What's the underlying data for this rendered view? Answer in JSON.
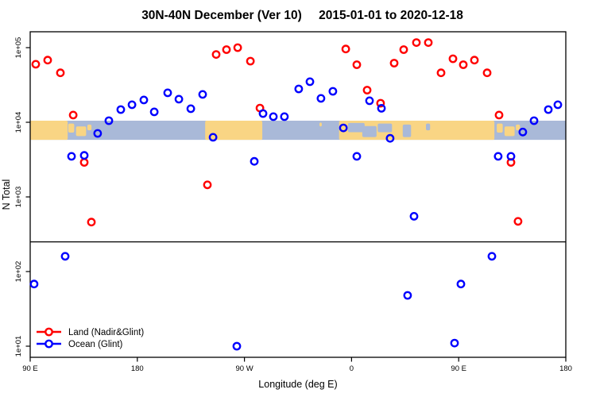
{
  "header": {
    "title_left": "30N-40N December (Ver 10)",
    "title_right": "2015-01-01 to 2020-12-18"
  },
  "chart_data": {
    "type": "scatter",
    "title": "30N-40N December (Ver 10)   2015-01-01 to 2020-12-18",
    "xlabel": "Longitude (deg E)",
    "ylabel": "N Total",
    "x_axis": {
      "range_deg_east_continuous": [
        90,
        540
      ],
      "ticks": [
        {
          "lon": 90,
          "label": "90 E"
        },
        {
          "lon": 180,
          "label": "180"
        },
        {
          "lon": 270,
          "label": "90 W"
        },
        {
          "lon": 360,
          "label": "0"
        },
        {
          "lon": 450,
          "label": "90 E"
        },
        {
          "lon": 540,
          "label": "180"
        }
      ]
    },
    "y_axis": {
      "scale": "log",
      "ticks": [
        {
          "value": 10,
          "label": "1e+01"
        },
        {
          "value": 100,
          "label": "1e+02"
        },
        {
          "value": 1000,
          "label": "1e+03"
        },
        {
          "value": 10000,
          "label": "1e+04"
        },
        {
          "value": 100000,
          "label": "1e+05"
        }
      ],
      "grid": false
    },
    "threshold_line": {
      "value": 250,
      "color": "#000000"
    },
    "map_band": {
      "description": "30N-40N world land/ocean strip drawn across the plot near 1e+04",
      "top_value": 10500,
      "bottom_value": 5800,
      "ocean_color": "#A9B9D8",
      "land_color": "#F9D584",
      "land_segments": [
        {
          "lon0": 90,
          "lon1": 121.5,
          "f0": 0,
          "f1": 1
        },
        {
          "lon0": 122,
          "lon1": 127,
          "f0": 0.15,
          "f1": 0.62
        },
        {
          "lon0": 128.5,
          "lon1": 137,
          "f0": 0.3,
          "f1": 0.8
        },
        {
          "lon0": 138,
          "lon1": 141.5,
          "f0": 0.2,
          "f1": 0.5
        },
        {
          "lon0": 237,
          "lon1": 285,
          "f0": 0,
          "f1": 1
        },
        {
          "lon0": 333,
          "lon1": 335,
          "f0": 0.1,
          "f1": 0.3
        },
        {
          "lon0": 349.5,
          "lon1": 480,
          "f0": 0,
          "f1": 1
        },
        {
          "lon0": 482,
          "lon1": 487,
          "f0": 0.15,
          "f1": 0.62
        },
        {
          "lon0": 488.5,
          "lon1": 497,
          "f0": 0.3,
          "f1": 0.8
        },
        {
          "lon0": 498,
          "lon1": 501.5,
          "f0": 0.2,
          "f1": 0.5
        }
      ],
      "water_patches": [
        {
          "lon0": 357,
          "lon1": 371,
          "f0": 0.12,
          "f1": 0.6
        },
        {
          "lon0": 369,
          "lon1": 381,
          "f0": 0.28,
          "f1": 0.85
        },
        {
          "lon0": 382,
          "lon1": 394,
          "f0": 0.15,
          "f1": 0.6
        },
        {
          "lon0": 403,
          "lon1": 410,
          "f0": 0.2,
          "f1": 0.85
        },
        {
          "lon0": 422.5,
          "lon1": 426,
          "f0": 0.15,
          "f1": 0.5
        }
      ]
    },
    "series": [
      {
        "name": "Land (Nadir&Glint)",
        "color": "#FF0000",
        "points": [
          {
            "lon": 94.7,
            "n": 60000
          },
          {
            "lon": 104.7,
            "n": 68000
          },
          {
            "lon": 115.4,
            "n": 46000
          },
          {
            "lon": 126.1,
            "n": 12500
          },
          {
            "lon": 135.4,
            "n": 2900
          },
          {
            "lon": 141.4,
            "n": 460
          },
          {
            "lon": 238.9,
            "n": 1450
          },
          {
            "lon": 246.2,
            "n": 81000
          },
          {
            "lon": 254.9,
            "n": 94000
          },
          {
            "lon": 264.3,
            "n": 100000
          },
          {
            "lon": 275.0,
            "n": 66000
          },
          {
            "lon": 283.0,
            "n": 15500
          },
          {
            "lon": 355.1,
            "n": 96000
          },
          {
            "lon": 364.4,
            "n": 59000
          },
          {
            "lon": 373.1,
            "n": 27000
          },
          {
            "lon": 384.4,
            "n": 18000
          },
          {
            "lon": 395.8,
            "n": 62000
          },
          {
            "lon": 403.8,
            "n": 94000
          },
          {
            "lon": 414.5,
            "n": 117000
          },
          {
            "lon": 424.5,
            "n": 117000
          },
          {
            "lon": 435.2,
            "n": 46000
          },
          {
            "lon": 445.2,
            "n": 71000
          },
          {
            "lon": 453.9,
            "n": 59000
          },
          {
            "lon": 463.2,
            "n": 68000
          },
          {
            "lon": 473.9,
            "n": 46000
          },
          {
            "lon": 483.9,
            "n": 12500
          },
          {
            "lon": 493.9,
            "n": 2900
          },
          {
            "lon": 499.9,
            "n": 470
          }
        ]
      },
      {
        "name": "Ocean (Glint)",
        "color": "#0000FF",
        "points": [
          {
            "lon": 93.3,
            "n": 68
          },
          {
            "lon": 119.4,
            "n": 160
          },
          {
            "lon": 124.7,
            "n": 3500
          },
          {
            "lon": 135.4,
            "n": 3600
          },
          {
            "lon": 146.7,
            "n": 7100
          },
          {
            "lon": 156.1,
            "n": 10500
          },
          {
            "lon": 166.1,
            "n": 14800
          },
          {
            "lon": 175.5,
            "n": 17200
          },
          {
            "lon": 185.5,
            "n": 19900
          },
          {
            "lon": 194.2,
            "n": 13800
          },
          {
            "lon": 205.5,
            "n": 24800
          },
          {
            "lon": 214.9,
            "n": 20400
          },
          {
            "lon": 224.9,
            "n": 15200
          },
          {
            "lon": 234.9,
            "n": 23600
          },
          {
            "lon": 243.6,
            "n": 6300
          },
          {
            "lon": 263.6,
            "n": 10
          },
          {
            "lon": 278.3,
            "n": 3000
          },
          {
            "lon": 285.6,
            "n": 13100
          },
          {
            "lon": 294.3,
            "n": 11900
          },
          {
            "lon": 303.6,
            "n": 11900
          },
          {
            "lon": 315.6,
            "n": 28000
          },
          {
            "lon": 325.0,
            "n": 35000
          },
          {
            "lon": 334.3,
            "n": 20900
          },
          {
            "lon": 344.3,
            "n": 26000
          },
          {
            "lon": 353.1,
            "n": 8400
          },
          {
            "lon": 364.4,
            "n": 3500
          },
          {
            "lon": 375.1,
            "n": 19400
          },
          {
            "lon": 385.1,
            "n": 15400
          },
          {
            "lon": 392.4,
            "n": 6100
          },
          {
            "lon": 407.1,
            "n": 48
          },
          {
            "lon": 412.5,
            "n": 550
          },
          {
            "lon": 446.5,
            "n": 11
          },
          {
            "lon": 451.9,
            "n": 68
          },
          {
            "lon": 477.9,
            "n": 160
          },
          {
            "lon": 483.2,
            "n": 3500
          },
          {
            "lon": 493.9,
            "n": 3500
          },
          {
            "lon": 503.9,
            "n": 7400
          },
          {
            "lon": 513.3,
            "n": 10500
          },
          {
            "lon": 525.3,
            "n": 14800
          },
          {
            "lon": 533.3,
            "n": 17200
          }
        ]
      }
    ],
    "legend": {
      "position": "bottom-left",
      "entries": [
        "Land (Nadir&Glint)",
        "Ocean (Glint)"
      ]
    }
  }
}
